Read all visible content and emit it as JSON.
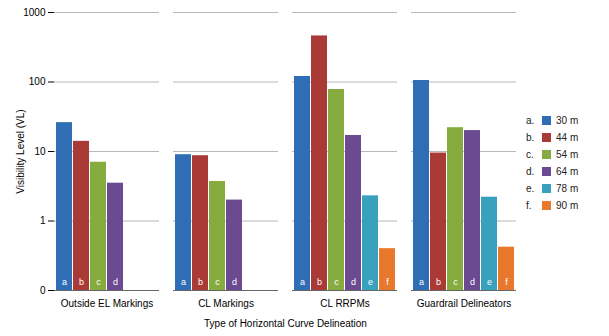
{
  "chart_data": {
    "type": "bar",
    "x_label": "Type of Horizontal Curve Delineation",
    "y_label": "Visibility Level (VL)",
    "categories": [
      "Outside EL Markings",
      "CL Markings",
      "CL RRPMs",
      "Guardrail Delineators"
    ],
    "series": [
      {
        "name": "30 m",
        "legend_label": "a.",
        "letter": "a",
        "color": "#2f6db5",
        "values": [
          26,
          9,
          120,
          105
        ]
      },
      {
        "name": "44 m",
        "legend_label": "b.",
        "letter": "b",
        "color": "#a93a36",
        "values": [
          14,
          8.7,
          460,
          9.5
        ]
      },
      {
        "name": "54 m",
        "legend_label": "c.",
        "letter": "c",
        "color": "#86ab3f",
        "values": [
          7,
          3.7,
          78,
          22
        ]
      },
      {
        "name": "64 m",
        "legend_label": "d.",
        "letter": "d",
        "color": "#6b4a92",
        "values": [
          3.5,
          2,
          17,
          20
        ]
      },
      {
        "name": "78 m",
        "legend_label": "e.",
        "letter": "e",
        "color": "#38a1bd",
        "values": [
          null,
          null,
          2.3,
          2.2
        ]
      },
      {
        "name": "90 m",
        "legend_label": "f.",
        "letter": "f",
        "color": "#e8792c",
        "values": [
          null,
          null,
          0.4,
          0.42
        ]
      }
    ],
    "log": "y",
    "ylim": [
      0.1,
      1000
    ],
    "yticks": [
      {
        "value": 0.1,
        "label": "0"
      },
      1,
      10,
      100,
      1000
    ],
    "grid": true,
    "legend": "right"
  }
}
